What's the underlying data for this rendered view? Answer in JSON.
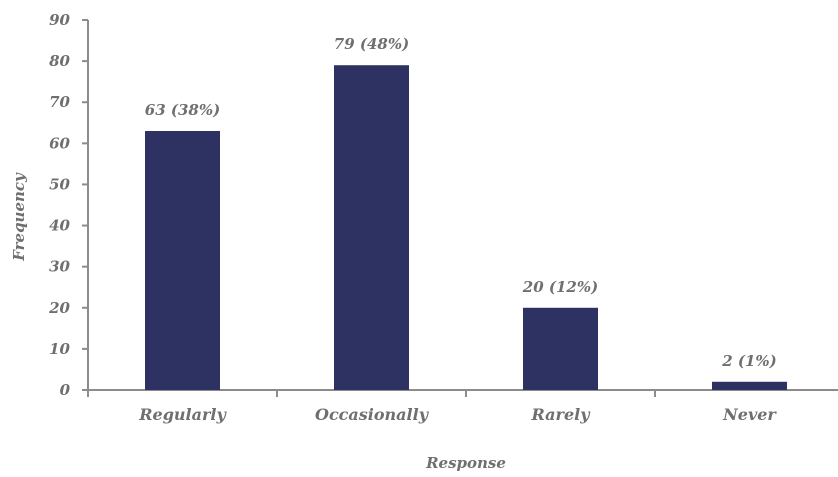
{
  "chart_data": {
    "type": "bar",
    "title": "",
    "xlabel": "Response",
    "ylabel": "Frequency",
    "ylim": [
      0,
      90
    ],
    "ytick_step": 10,
    "yticks": [
      "0",
      "10",
      "20",
      "30",
      "40",
      "50",
      "60",
      "70",
      "80",
      "90"
    ],
    "categories": [
      "Regularly",
      "Occasionally",
      "Rarely",
      "Never"
    ],
    "values": [
      63,
      79,
      20,
      2
    ],
    "data_labels": [
      "63 (38%)",
      "79 (48%)",
      "20 (12%)",
      "2 (1%)"
    ],
    "grid": false,
    "legend": "none",
    "colors": {
      "bar": "#2d3262",
      "text": "#6f6f6f",
      "axis": "#8c8c8c"
    }
  }
}
